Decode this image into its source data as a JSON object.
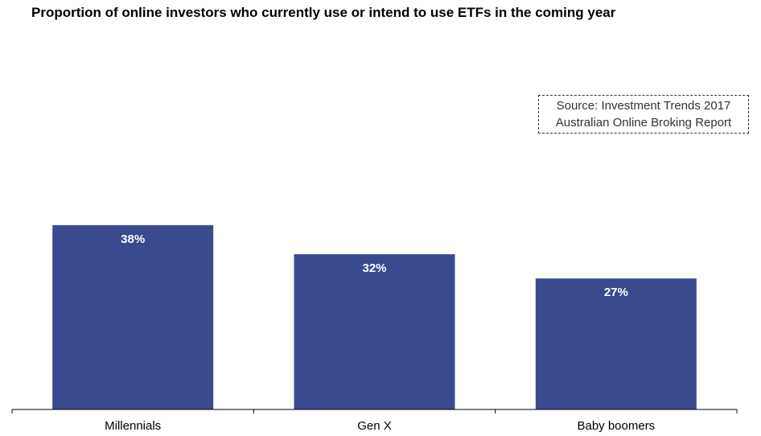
{
  "chart_data": {
    "type": "bar",
    "title": "Proportion of online investors who currently use or intend to use ETFs in the coming year",
    "categories": [
      "Millennials",
      "Gen X",
      "Baby boomers"
    ],
    "values": [
      38,
      32,
      27
    ],
    "value_labels": [
      "38%",
      "32%",
      "27%"
    ],
    "ylim": [
      0,
      50
    ],
    "grid": false,
    "bar_color": "#3b4a8f"
  },
  "source_note": {
    "line1": "Source: Investment Trends 2017",
    "line2": "Australian Online Broking Report"
  }
}
